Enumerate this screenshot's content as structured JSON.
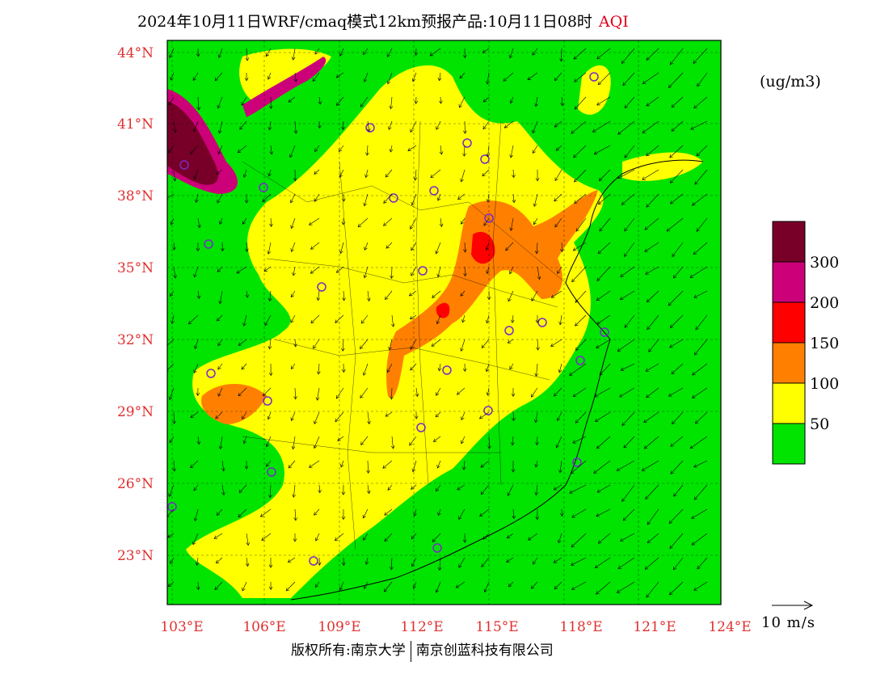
{
  "title": {
    "main": "2024年10月11日WRF/cmaq模式12km预报产品:10月11日08时",
    "variable": "AQI"
  },
  "map": {
    "lat_labels": [
      "44°N",
      "41°N",
      "38°N",
      "35°N",
      "32°N",
      "29°N",
      "26°N",
      "23°N"
    ],
    "lon_labels": [
      "103°E",
      "106°E",
      "109°E",
      "112°E",
      "115°E",
      "118°E",
      "121°E",
      "124°E"
    ],
    "label_color": "#e03030",
    "extent": {
      "lon_min": 102.9,
      "lon_max": 124.0,
      "lat_min": 21.0,
      "lat_max": 44.5
    }
  },
  "legend": {
    "unit": "(ug/m3)",
    "bins": [
      {
        "label": "300",
        "color": "#780028"
      },
      {
        "label": "200",
        "color": "#cc0078"
      },
      {
        "label": "150",
        "color": "#ff0000"
      },
      {
        "label": "100",
        "color": "#ff8000"
      },
      {
        "label": "50",
        "color": "#ffff00"
      },
      {
        "label": "",
        "color": "#00e400"
      }
    ]
  },
  "wind": {
    "scale_label": "10 m/s"
  },
  "footer": {
    "copyright": "版权所有:南京大学",
    "company": "南京创蓝科技有限公司"
  },
  "stations_color": "#7a2ac8"
}
